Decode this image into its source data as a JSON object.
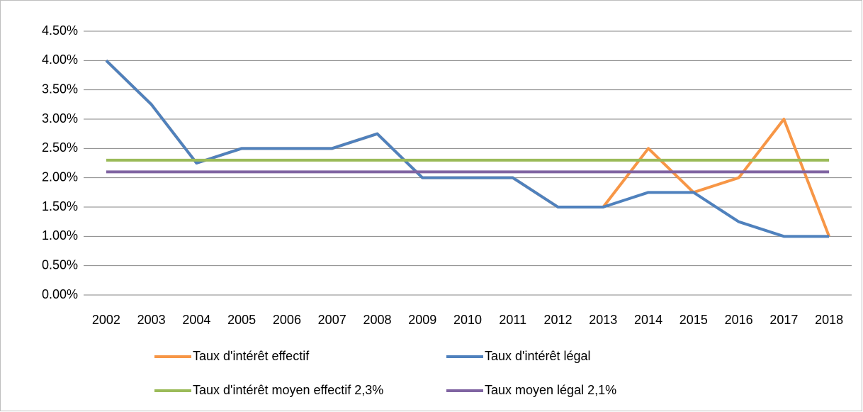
{
  "chart_data": {
    "type": "line",
    "categories": [
      "2002",
      "2003",
      "2004",
      "2005",
      "2006",
      "2007",
      "2008",
      "2009",
      "2010",
      "2011",
      "2012",
      "2013",
      "2014",
      "2015",
      "2016",
      "2017",
      "2018"
    ],
    "series": [
      {
        "name": "Taux d'intérêt effectif",
        "color": "#f79646",
        "values": [
          4.0,
          3.25,
          2.25,
          2.5,
          2.5,
          2.5,
          2.75,
          2.0,
          2.0,
          2.0,
          1.5,
          1.5,
          2.5,
          1.75,
          2.0,
          3.0,
          1.0
        ]
      },
      {
        "name": "Taux d'intérêt légal",
        "color": "#4f81bd",
        "values": [
          4.0,
          3.25,
          2.25,
          2.5,
          2.5,
          2.5,
          2.75,
          2.0,
          2.0,
          2.0,
          1.5,
          1.5,
          1.75,
          1.75,
          1.25,
          1.0,
          1.0
        ]
      },
      {
        "name": "Taux d'intérêt moyen effectif 2,3%",
        "color": "#9bbb59",
        "values": [
          2.3,
          2.3,
          2.3,
          2.3,
          2.3,
          2.3,
          2.3,
          2.3,
          2.3,
          2.3,
          2.3,
          2.3,
          2.3,
          2.3,
          2.3,
          2.3,
          2.3
        ]
      },
      {
        "name": "Taux moyen légal 2,1%",
        "color": "#8064a2",
        "values": [
          2.1,
          2.1,
          2.1,
          2.1,
          2.1,
          2.1,
          2.1,
          2.1,
          2.1,
          2.1,
          2.1,
          2.1,
          2.1,
          2.1,
          2.1,
          2.1,
          2.1
        ]
      }
    ],
    "ylim": [
      0,
      4.5
    ],
    "yticks": [
      {
        "value": 0,
        "label": "0.00%"
      },
      {
        "value": 0.5,
        "label": "0.50%"
      },
      {
        "value": 1,
        "label": "1.00%"
      },
      {
        "value": 1.5,
        "label": "1.50%"
      },
      {
        "value": 2,
        "label": "2.00%"
      },
      {
        "value": 2.5,
        "label": "2.50%"
      },
      {
        "value": 3,
        "label": "3.00%"
      },
      {
        "value": 3.5,
        "label": "3.50%"
      },
      {
        "value": 4,
        "label": "4.00%"
      },
      {
        "value": 4.5,
        "label": "4.50%"
      }
    ],
    "grid": true,
    "legend": "bottom"
  }
}
